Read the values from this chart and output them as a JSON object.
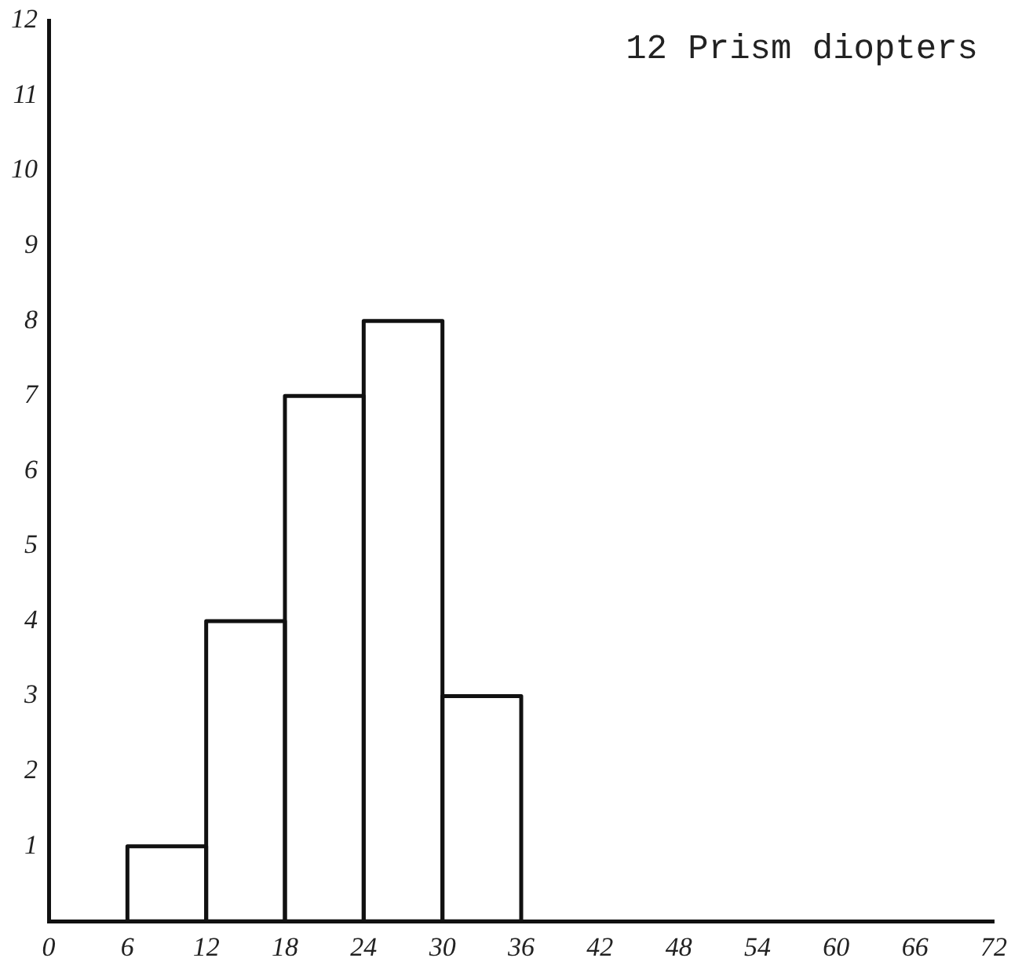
{
  "chart_data": {
    "type": "histogram",
    "title": "12 Prism diopters",
    "bins": [
      6,
      12,
      18,
      24,
      30,
      36
    ],
    "values": [
      1,
      4,
      7,
      8,
      3
    ],
    "color": "#111111",
    "xlim": [
      0,
      72
    ],
    "xticks": [
      0,
      6,
      12,
      18,
      24,
      30,
      36,
      42,
      48,
      54,
      60,
      66,
      72
    ],
    "ylim": [
      0,
      12
    ],
    "yticks": [
      1,
      2,
      3,
      4,
      5,
      6,
      7,
      8,
      9,
      10,
      11,
      12
    ],
    "grid": false,
    "legend": false
  }
}
